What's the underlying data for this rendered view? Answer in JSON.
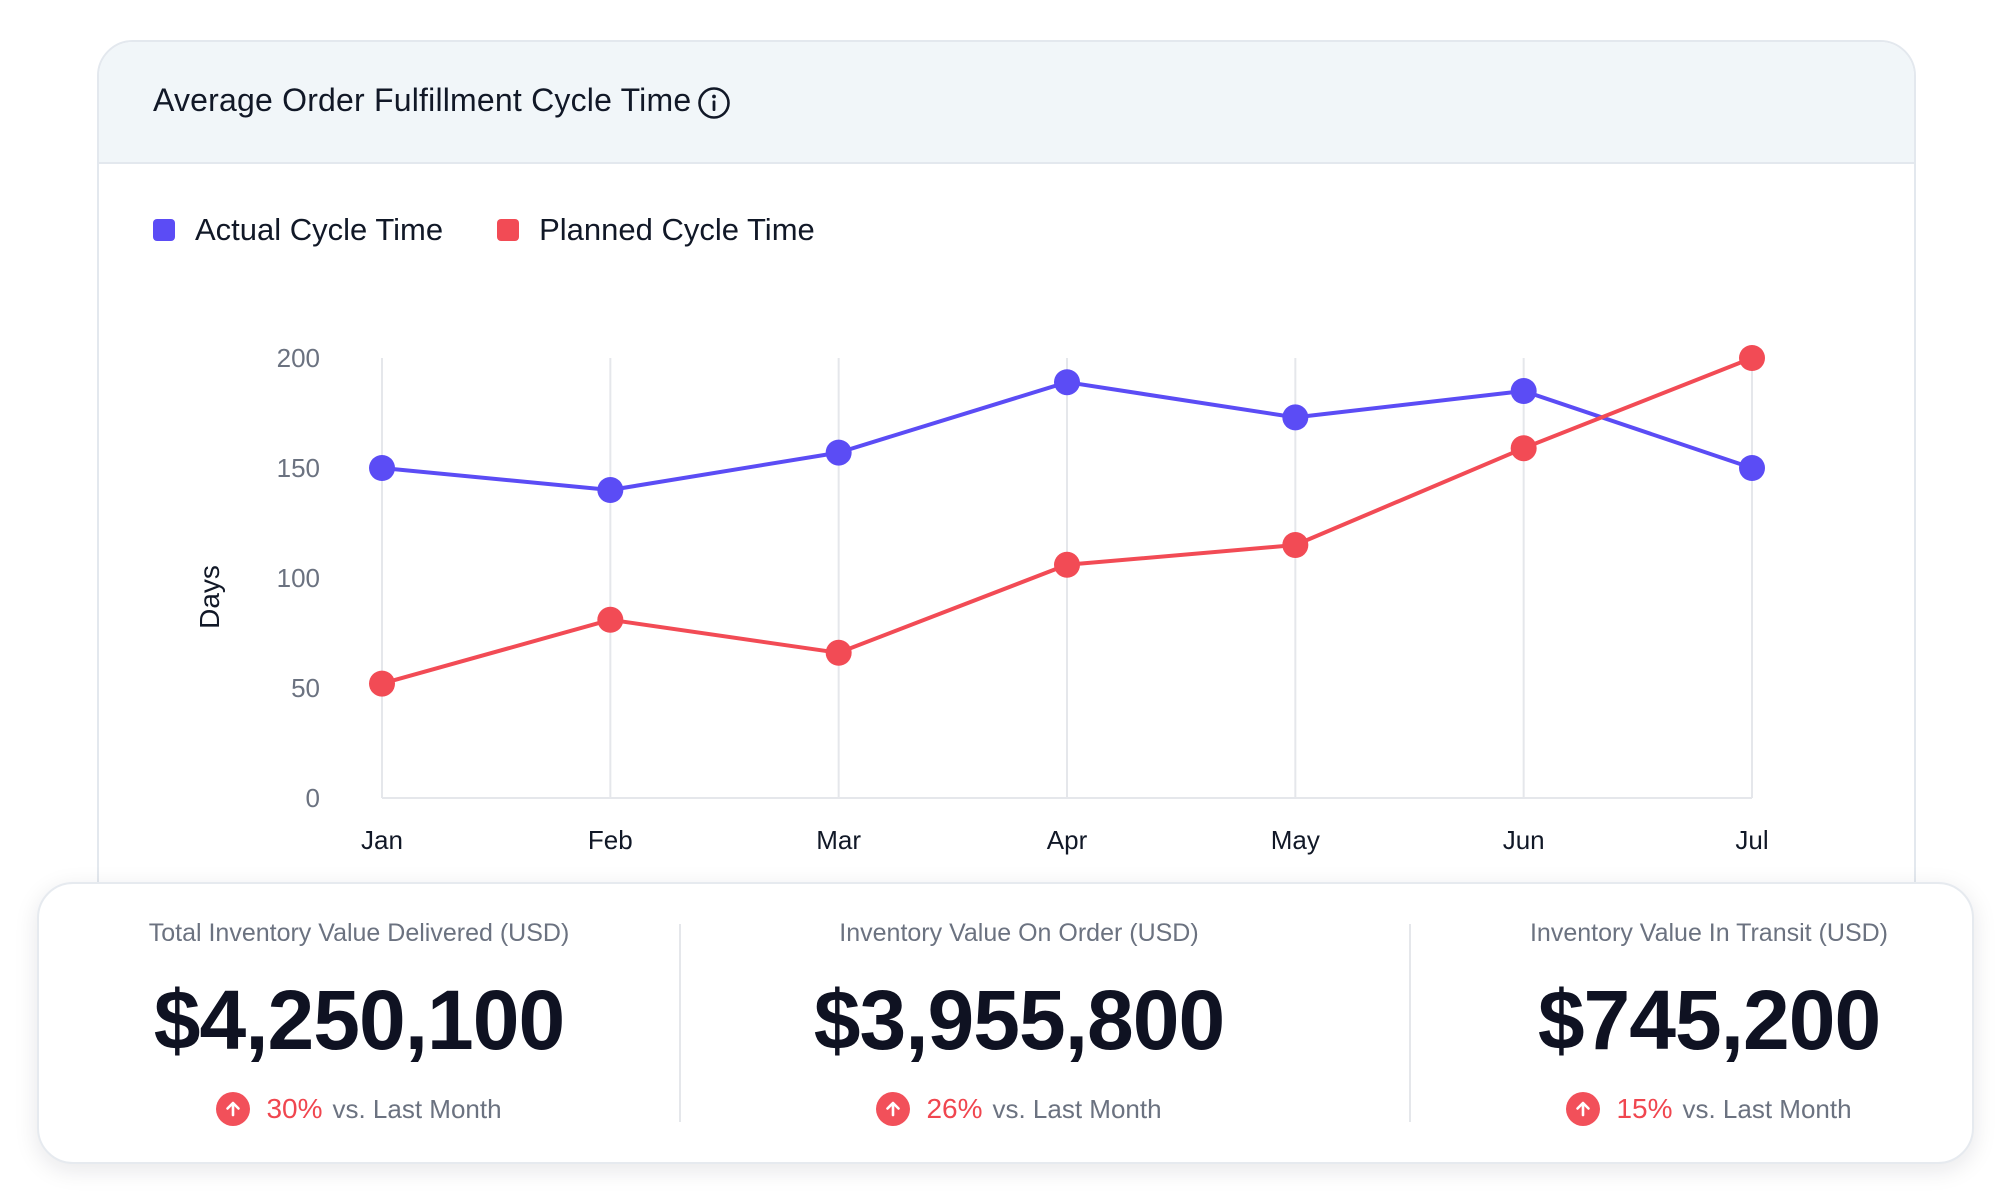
{
  "card": {
    "title": "Average Order Fulfillment Cycle Time",
    "info_icon": "info-circle-icon"
  },
  "chart_data": {
    "type": "line",
    "categories": [
      "Jan",
      "Feb",
      "Mar",
      "Apr",
      "May",
      "Jun",
      "Jul"
    ],
    "ylabel": "Days",
    "xlabel": "",
    "ylim": [
      0,
      200
    ],
    "yticks": [
      0,
      50,
      100,
      150,
      200
    ],
    "grid": "vertical",
    "legend_position": "top-left",
    "series": [
      {
        "name": "Actual Cycle Time",
        "color": "#5b4cf5",
        "values": [
          150,
          140,
          157,
          189,
          173,
          185,
          150
        ]
      },
      {
        "name": "Planned Cycle Time",
        "color": "#f24b55",
        "values": [
          52,
          81,
          66,
          106,
          115,
          159,
          200
        ]
      }
    ]
  },
  "stats": [
    {
      "label": "Total Inventory Value Delivered (USD)",
      "value": "$4,250,100",
      "change": "30%",
      "suffix": "vs. Last Month"
    },
    {
      "label": "Inventory Value On Order (USD)",
      "value": "$3,955,800",
      "change": "26%",
      "suffix": "vs. Last Month"
    },
    {
      "label": "Inventory Value In Transit (USD)",
      "value": "$745,200",
      "change": "15%",
      "suffix": "vs. Last Month"
    }
  ],
  "colors": {
    "accent_up": "#f2505a",
    "text_muted": "#6b7280"
  }
}
